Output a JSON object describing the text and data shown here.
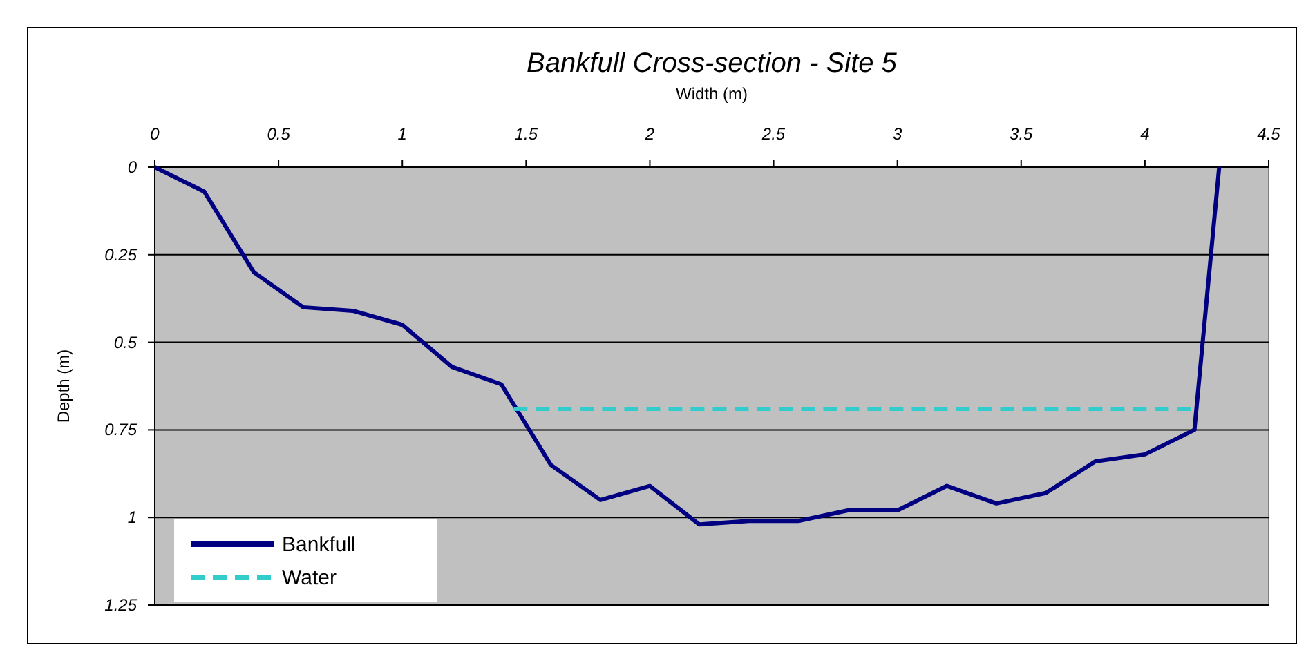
{
  "chart_data": {
    "type": "line",
    "title": "Bankfull Cross-section - Site 5",
    "xlabel": "Width (m)",
    "ylabel": "Depth (m)",
    "xlim": [
      0,
      4.5
    ],
    "xticks": [
      0,
      0.5,
      1,
      1.5,
      2,
      2.5,
      3,
      3.5,
      4,
      4.5
    ],
    "ylim": [
      1.25,
      0
    ],
    "yticks": [
      0,
      0.25,
      0.5,
      0.75,
      1,
      1.25
    ],
    "grid": "y",
    "legend": "bottom left",
    "marker": "none",
    "series": [
      {
        "name": "Bankfull",
        "color": "#000080",
        "line_style": "solid",
        "x": [
          0,
          0.2,
          0.4,
          0.6,
          0.8,
          1.0,
          1.2,
          1.4,
          1.6,
          1.8,
          2.0,
          2.2,
          2.4,
          2.6,
          2.8,
          3.0,
          3.2,
          3.4,
          3.6,
          3.8,
          4.0,
          4.2,
          4.3
        ],
        "values": [
          0,
          0.07,
          0.3,
          0.4,
          0.41,
          0.45,
          0.57,
          0.62,
          0.85,
          0.95,
          0.91,
          1.02,
          1.01,
          1.01,
          0.98,
          0.98,
          0.91,
          0.96,
          0.93,
          0.84,
          0.82,
          0.75,
          0
        ]
      },
      {
        "name": "Water",
        "color": "#33cccc",
        "line_style": "dashed",
        "x": [
          1.45,
          4.2
        ],
        "values": [
          0.69,
          0.69
        ]
      }
    ]
  }
}
